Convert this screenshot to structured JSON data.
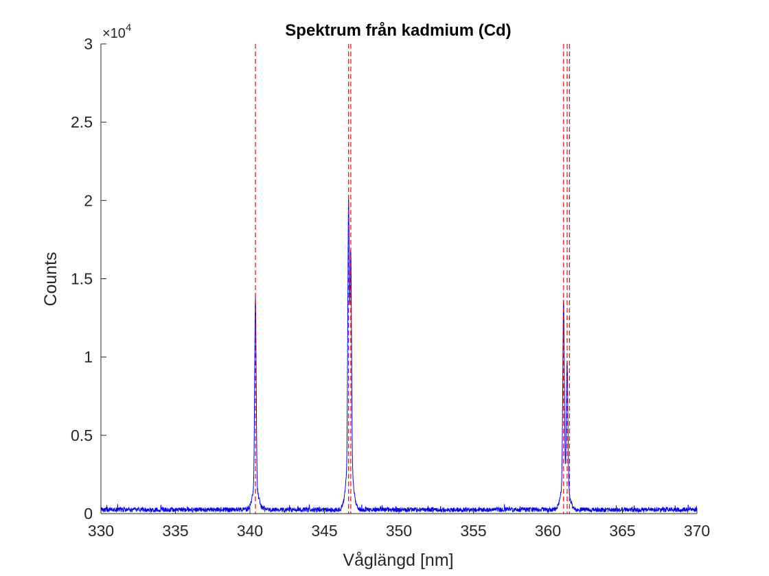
{
  "chart_data": {
    "type": "line",
    "title": "Spektrum från kadmium (Cd)",
    "xlabel": "Våglängd [nm]",
    "ylabel": "Counts",
    "xlim": [
      330,
      370
    ],
    "ylim": [
      0,
      30000
    ],
    "x_ticks": [
      330,
      335,
      340,
      345,
      350,
      355,
      360,
      365,
      370
    ],
    "x_tick_labels": [
      "330",
      "335",
      "340",
      "345",
      "350",
      "355",
      "360",
      "365",
      "370"
    ],
    "y_ticks": [
      0,
      5000,
      10000,
      15000,
      20000,
      25000,
      30000
    ],
    "y_tick_labels": [
      "0",
      "0.5",
      "1",
      "1.5",
      "2",
      "2.5",
      "3"
    ],
    "y_exponent_label": "×10",
    "y_exponent_power": "4",
    "grid": false,
    "series": [
      {
        "color": "#0000ff",
        "baseline": 200,
        "noise_amplitude": 300,
        "peaks": [
          {
            "center": 340.37,
            "height": 12200,
            "width": 0.05
          },
          {
            "center": 346.62,
            "height": 16500,
            "width": 0.05
          },
          {
            "center": 346.77,
            "height": 13500,
            "width": 0.05
          },
          {
            "center": 361.05,
            "height": 11600,
            "width": 0.05
          },
          {
            "center": 361.29,
            "height": 7800,
            "width": 0.05
          }
        ]
      }
    ],
    "reference_lines": {
      "color": "#ff0000",
      "style": "dashed",
      "x": [
        340.37,
        346.62,
        346.77,
        361.05,
        361.29,
        361.45
      ]
    }
  }
}
